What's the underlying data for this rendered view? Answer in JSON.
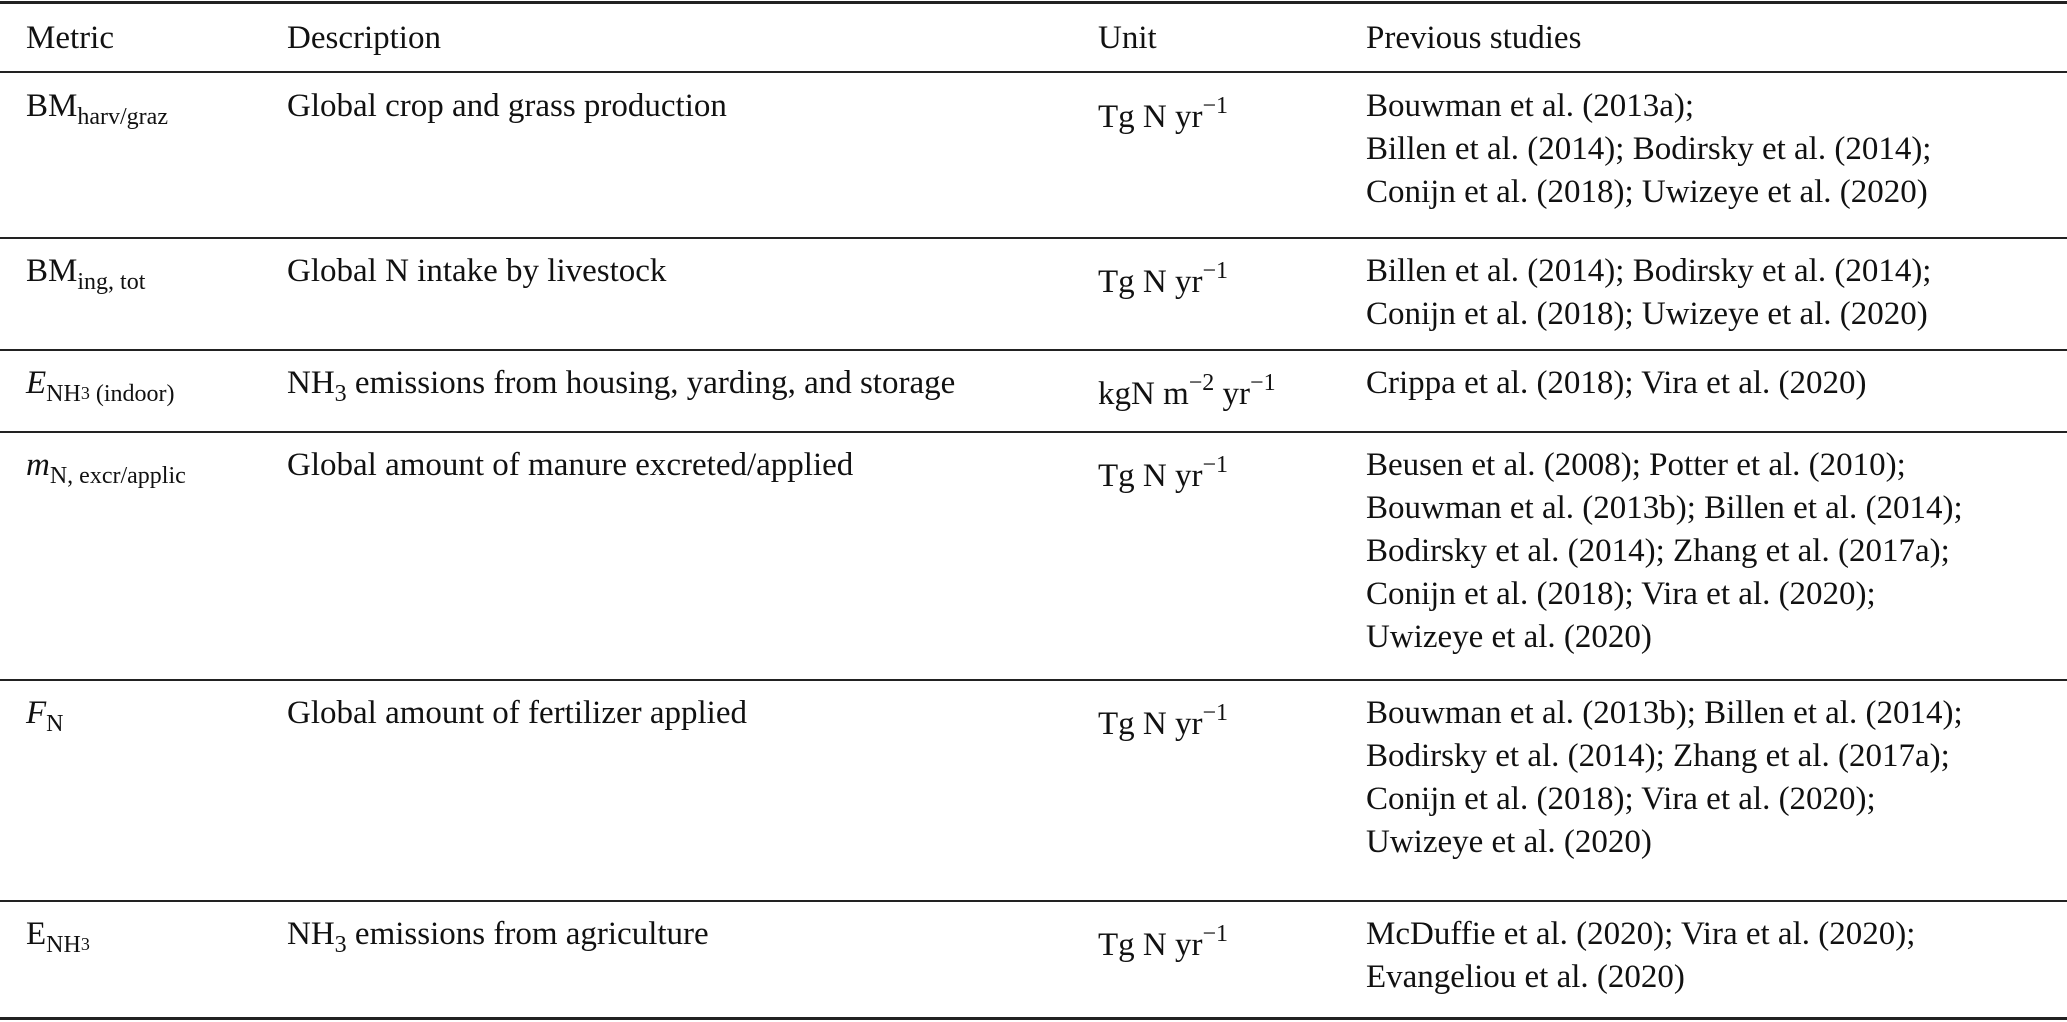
{
  "header": [
    "Metric",
    "Description",
    "Unit",
    "Previous studies"
  ],
  "rows": [
    {
      "metric": [
        {
          "t": "BM"
        },
        {
          "t": "harv/graz",
          "s": "sub"
        }
      ],
      "description": [
        {
          "t": "Global crop and grass production"
        }
      ],
      "unit": [
        {
          "t": "Tg N yr"
        },
        {
          "t": "−1",
          "s": "sup"
        }
      ],
      "studies": [
        "Bouwman et al. (2013a);",
        "Billen et al. (2014); Bodirsky et al. (2014);",
        "Conijn et al. (2018); Uwizeye et al. (2020)"
      ]
    },
    {
      "metric": [
        {
          "t": "BM"
        },
        {
          "t": "ing, tot",
          "s": "sub"
        }
      ],
      "description": [
        {
          "t": "Global N intake by livestock"
        }
      ],
      "unit": [
        {
          "t": "Tg N yr"
        },
        {
          "t": "−1",
          "s": "sup"
        }
      ],
      "studies": [
        "Billen et al. (2014); Bodirsky et al. (2014);",
        "Conijn et al. (2018); Uwizeye et al. (2020)"
      ]
    },
    {
      "metric": [
        {
          "t": "E",
          "s": "it"
        },
        {
          "t": "NH",
          "s": "sub"
        },
        {
          "t": "3",
          "s": "subsub"
        },
        {
          "t": " (indoor)",
          "s": "sub"
        }
      ],
      "description": [
        {
          "t": "NH"
        },
        {
          "t": "3",
          "s": "sub"
        },
        {
          "t": " emissions from housing, yarding, and storage"
        }
      ],
      "unit": [
        {
          "t": "kgN m"
        },
        {
          "t": "−2",
          "s": "sup"
        },
        {
          "t": " yr"
        },
        {
          "t": "−1",
          "s": "sup"
        }
      ],
      "studies": [
        "Crippa et al. (2018); Vira et al. (2020)"
      ]
    },
    {
      "metric": [
        {
          "t": "m",
          "s": "it"
        },
        {
          "t": "N, excr/applic",
          "s": "sub"
        }
      ],
      "description": [
        {
          "t": "Global amount of manure excreted/applied"
        }
      ],
      "unit": [
        {
          "t": "Tg N yr"
        },
        {
          "t": "−1",
          "s": "sup"
        }
      ],
      "studies": [
        "Beusen et al. (2008); Potter et al. (2010);",
        "Bouwman et al. (2013b); Billen et al. (2014);",
        "Bodirsky et al. (2014); Zhang et al. (2017a);",
        "Conijn et al. (2018); Vira et al. (2020);",
        "Uwizeye et al. (2020)"
      ]
    },
    {
      "metric": [
        {
          "t": "F",
          "s": "it"
        },
        {
          "t": "N",
          "s": "sub"
        }
      ],
      "description": [
        {
          "t": "Global amount of fertilizer applied"
        }
      ],
      "unit": [
        {
          "t": "Tg N yr"
        },
        {
          "t": "−1",
          "s": "sup"
        }
      ],
      "studies": [
        "Bouwman et al. (2013b); Billen et al. (2014);",
        "Bodirsky et al. (2014); Zhang et al. (2017a);",
        "Conijn et al. (2018); Vira et al. (2020);",
        "Uwizeye et al. (2020)"
      ]
    },
    {
      "metric": [
        {
          "t": "E"
        },
        {
          "t": "NH",
          "s": "sub"
        },
        {
          "t": "3",
          "s": "subsub"
        }
      ],
      "description": [
        {
          "t": "NH"
        },
        {
          "t": "3",
          "s": "sub"
        },
        {
          "t": " emissions from agriculture"
        }
      ],
      "unit": [
        {
          "t": "Tg N yr"
        },
        {
          "t": "−1",
          "s": "sup"
        }
      ],
      "studies": [
        "McDuffie et al. (2020); Vira et al. (2020);",
        "Evangeliou et al. (2020)"
      ]
    }
  ]
}
